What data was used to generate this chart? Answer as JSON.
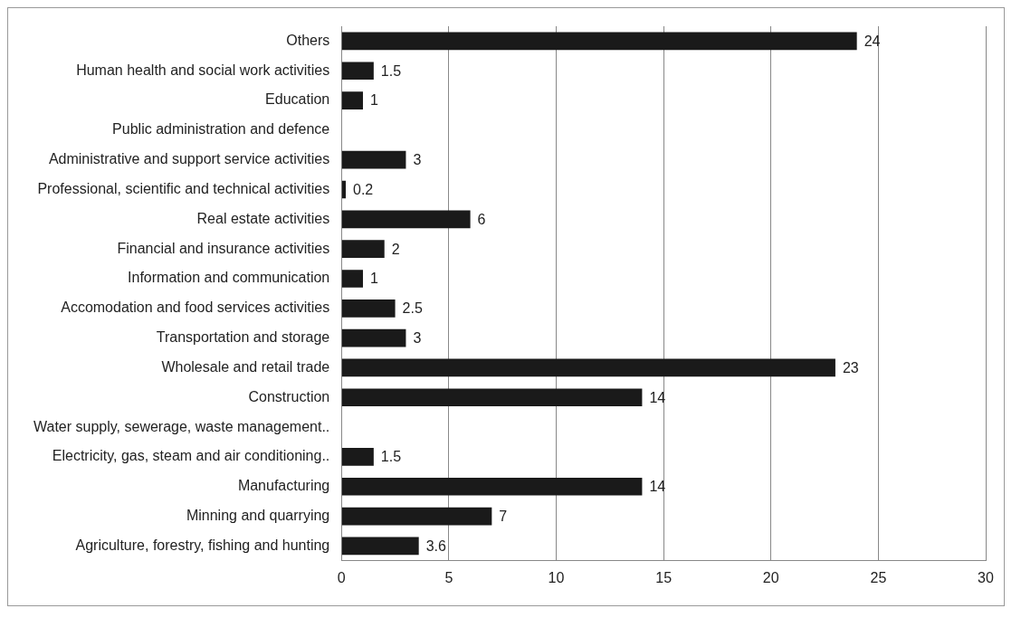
{
  "chart_data": {
    "type": "bar",
    "orientation": "horizontal",
    "categories": [
      "Others",
      "Human health and social work activities",
      "Education",
      "Public administration and defence",
      "Administrative and support service activities",
      "Professional, scientific and technical activities",
      "Real estate activities",
      "Financial and insurance activities",
      "Information and communication",
      "Accomodation and food services activities",
      "Transportation and storage",
      "Wholesale and retail trade",
      "Construction",
      "Water supply, sewerage, waste management..",
      "Electricity, gas, steam and air conditioning..",
      "Manufacturing",
      "Minning and quarrying",
      "Agriculture, forestry, fishing and hunting"
    ],
    "values": [
      24,
      1.5,
      1,
      null,
      3,
      0.2,
      6,
      2,
      1,
      2.5,
      3,
      23,
      14,
      null,
      1.5,
      14,
      7,
      3.6
    ],
    "color": "#1a1a1a",
    "xlim": [
      0,
      30
    ],
    "xticks": [
      0,
      5,
      10,
      15,
      20,
      25,
      30
    ],
    "grid": "x",
    "legend": false,
    "data_labels": true
  }
}
